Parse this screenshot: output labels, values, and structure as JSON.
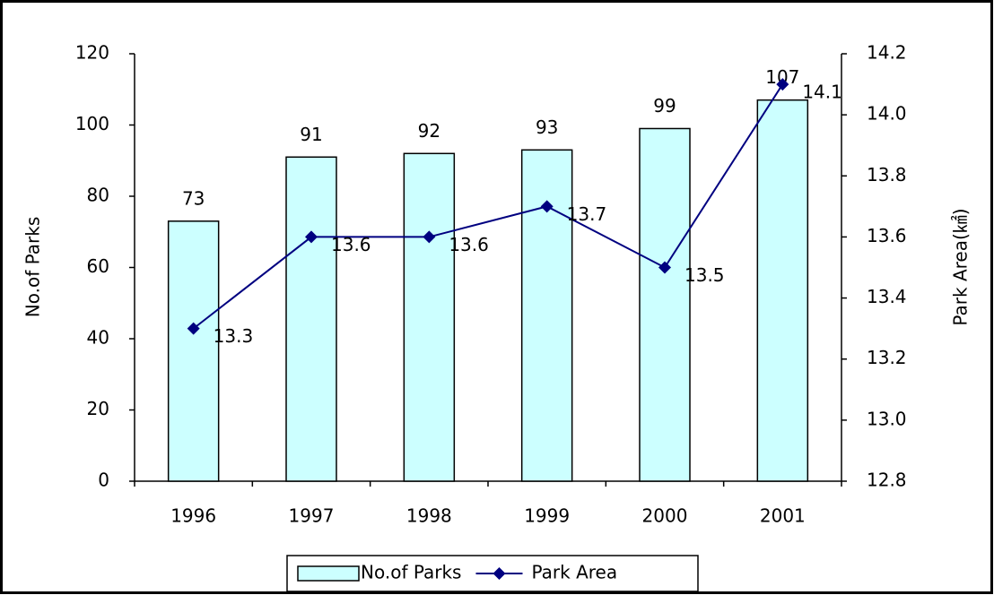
{
  "chart_data": {
    "type": "bar",
    "categories": [
      "1996",
      "1997",
      "1998",
      "1999",
      "2000",
      "2001"
    ],
    "ylabel": "No.of Parks",
    "y2label": "Park Area(㎢)",
    "ylim": [
      0,
      120
    ],
    "yticks": [
      0,
      20,
      40,
      60,
      80,
      100,
      120
    ],
    "y2lim": [
      12.8,
      14.2
    ],
    "y2ticks": [
      12.8,
      {
        "value": 13.0,
        "label": "13.0"
      },
      13.2,
      13.4,
      13.6,
      13.8,
      {
        "value": 14.0,
        "label": "14.0"
      },
      14.2
    ],
    "legend": "bottom",
    "series": [
      {
        "name": "No.of Parks",
        "type": "bar",
        "color": "#ccffff",
        "values": [
          73,
          91,
          92,
          93,
          99,
          107
        ]
      },
      {
        "name": "Park Area",
        "type": "line",
        "axis": "y2",
        "color": "#000080",
        "values": [
          13.3,
          13.6,
          13.6,
          13.7,
          13.5,
          14.1
        ]
      }
    ]
  }
}
